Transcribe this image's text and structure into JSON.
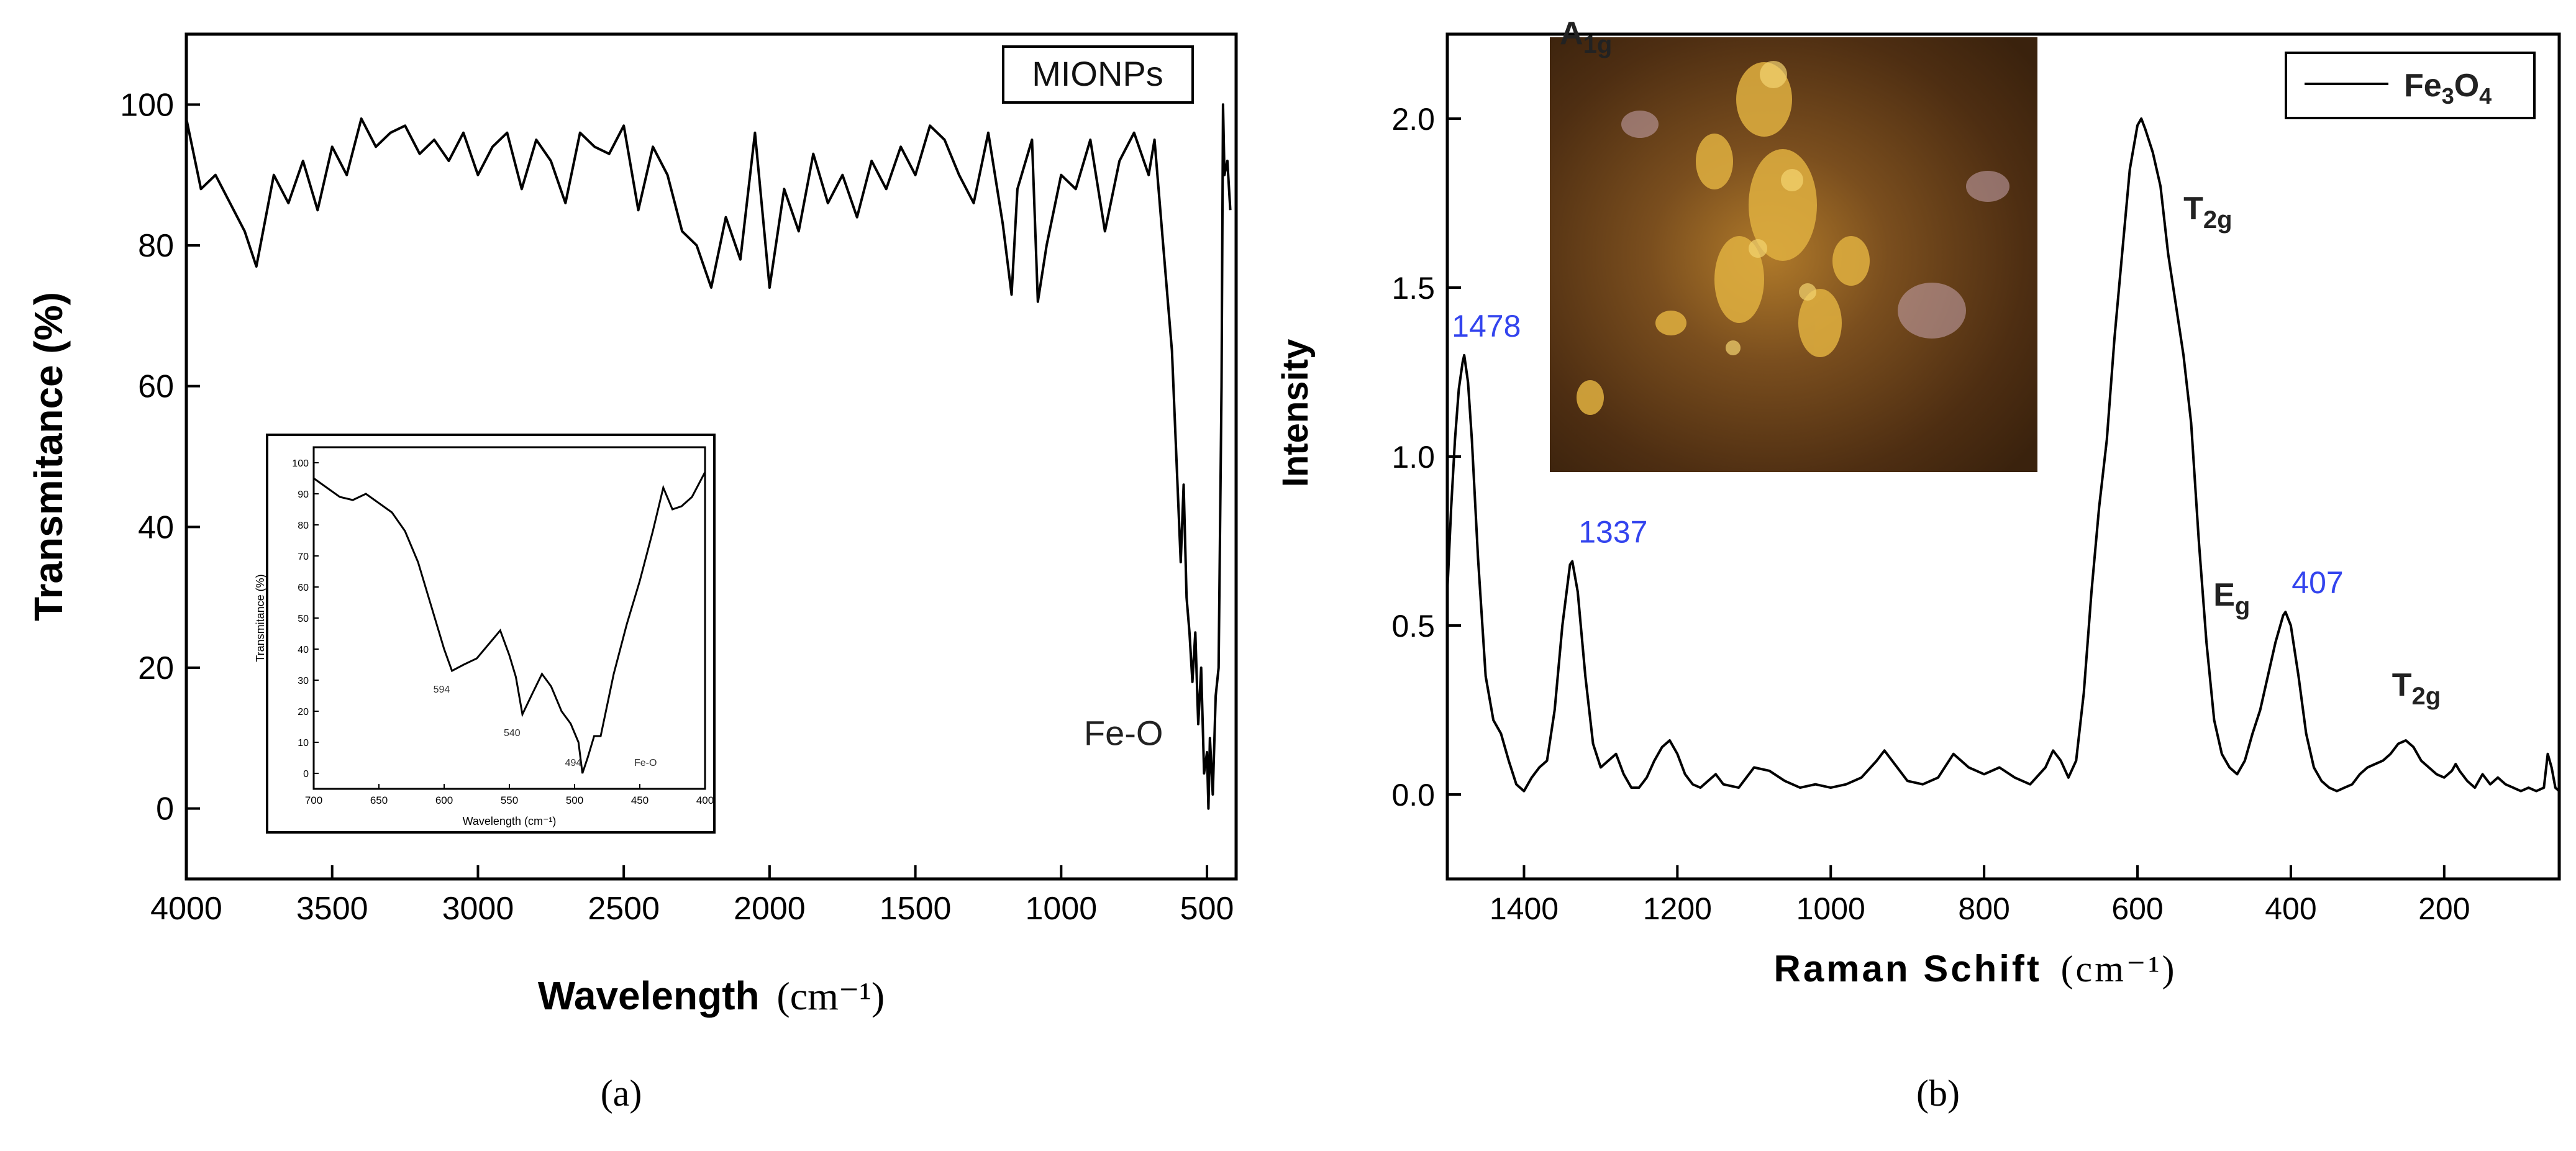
{
  "chart_data": [
    {
      "type": "line",
      "panel_label": "(a)",
      "xlabel": "Wavelength",
      "xlabel_unit": "(cm⁻¹)",
      "ylabel": "Transmitance (%)",
      "xlim": [
        4000,
        400
      ],
      "ylim": [
        -10,
        110
      ],
      "x_ticks": [
        4000,
        3500,
        3000,
        2500,
        2000,
        1500,
        1000,
        500
      ],
      "y_ticks": [
        0,
        20,
        40,
        60,
        80,
        100
      ],
      "legend": "MIONPs",
      "legend_position": "top-right",
      "annotations": [
        {
          "text": "Fe-O",
          "x": 560,
          "y": 9
        }
      ],
      "series": [
        {
          "x": [
            4000,
            3950,
            3900,
            3850,
            3800,
            3760,
            3700,
            3650,
            3600,
            3550,
            3500,
            3450,
            3400,
            3350,
            3300,
            3250,
            3200,
            3150,
            3100,
            3050,
            3000,
            2950,
            2900,
            2850,
            2800,
            2750,
            2700,
            2650,
            2600,
            2550,
            2500,
            2450,
            2400,
            2350,
            2300,
            2250,
            2200,
            2150,
            2100,
            2050,
            2000,
            1950,
            1900,
            1850,
            1800,
            1750,
            1700,
            1650,
            1600,
            1550,
            1500,
            1450,
            1400,
            1350,
            1300,
            1250,
            1200,
            1170,
            1150,
            1100,
            1080,
            1050,
            1000,
            950,
            900,
            850,
            800,
            750,
            700,
            680,
            650,
            640,
            620,
            600,
            590,
            580,
            570,
            560,
            550,
            540,
            530,
            520,
            510,
            500,
            495,
            490,
            480,
            470,
            460,
            450,
            445,
            440,
            430,
            420
          ],
          "values": [
            98,
            88,
            90,
            86,
            82,
            77,
            90,
            86,
            92,
            85,
            94,
            90,
            98,
            94,
            96,
            97,
            93,
            95,
            92,
            96,
            90,
            94,
            96,
            88,
            95,
            92,
            86,
            96,
            94,
            93,
            97,
            85,
            94,
            90,
            82,
            80,
            74,
            84,
            78,
            96,
            74,
            88,
            82,
            93,
            86,
            90,
            84,
            92,
            88,
            94,
            90,
            97,
            95,
            90,
            86,
            96,
            83,
            73,
            88,
            95,
            72,
            80,
            90,
            88,
            95,
            82,
            92,
            96,
            90,
            95,
            80,
            75,
            65,
            45,
            35,
            46,
            30,
            25,
            18,
            25,
            12,
            20,
            5,
            8,
            0,
            10,
            2,
            16,
            20,
            60,
            100,
            90,
            92,
            85
          ]
        }
      ]
    },
    {
      "type": "line",
      "inset_of": "(a)",
      "xlabel": "Wavelength (cm⁻¹)",
      "ylabel": "Transmitance (%)",
      "xlim": [
        700,
        400
      ],
      "ylim": [
        -5,
        105
      ],
      "x_ticks": [
        700,
        650,
        600,
        550,
        500,
        450,
        400
      ],
      "y_ticks": [
        0,
        10,
        20,
        30,
        40,
        50,
        60,
        70,
        80,
        90,
        100
      ],
      "annotations": [
        {
          "text": "594",
          "x": 594,
          "y": 33
        },
        {
          "text": "540",
          "x": 540,
          "y": 19
        },
        {
          "text": "494",
          "x": 494,
          "y": 0
        },
        {
          "text": "Fe-O",
          "x": 460,
          "y": 0
        }
      ],
      "series": [
        {
          "x": [
            700,
            690,
            680,
            670,
            660,
            650,
            640,
            630,
            620,
            610,
            600,
            594,
            585,
            575,
            565,
            557,
            550,
            545,
            540,
            532,
            525,
            518,
            510,
            503,
            497,
            494,
            490,
            485,
            480,
            470,
            460,
            450,
            440,
            432,
            425,
            418,
            410,
            400
          ],
          "values": [
            95,
            92,
            89,
            88,
            90,
            87,
            84,
            78,
            68,
            54,
            40,
            33,
            35,
            37,
            42,
            46,
            38,
            31,
            19,
            26,
            32,
            28,
            20,
            16,
            10,
            0,
            5,
            12,
            12,
            32,
            48,
            62,
            78,
            92,
            85,
            86,
            89,
            97
          ]
        }
      ]
    },
    {
      "type": "line",
      "panel_label": "(b)",
      "xlabel": "Raman Schift",
      "xlabel_unit": "(cm⁻¹)",
      "ylabel": "Intensity",
      "xlim": [
        1500,
        50
      ],
      "ylim": [
        -0.25,
        2.25
      ],
      "x_ticks": [
        1400,
        1200,
        1000,
        800,
        600,
        400,
        200
      ],
      "y_ticks": [
        0.0,
        0.5,
        1.0,
        1.5,
        2.0
      ],
      "legend": "Fe3O4",
      "legend_position": "top-right",
      "inset_image": "micrograph",
      "peak_labels": [
        {
          "text": "1478",
          "x": 1478,
          "y": 1.3
        },
        {
          "text": "1337",
          "x": 1337,
          "y": 0.69
        },
        {
          "text": "407",
          "x": 407,
          "y": 0.54
        }
      ],
      "mode_labels": [
        {
          "base": "A",
          "sub": "1g",
          "x": 600,
          "y": 2.0
        },
        {
          "base": "T",
          "sub": "2g",
          "x": 540,
          "y": 1.5
        },
        {
          "base": "E",
          "sub": "g",
          "x": 420,
          "y": 0.55
        },
        {
          "base": "T",
          "sub": "2g",
          "x": 260,
          "y": 0.2
        }
      ],
      "series": [
        {
          "name": "Fe3O4",
          "x": [
            1500,
            1495,
            1490,
            1485,
            1480,
            1478,
            1473,
            1468,
            1460,
            1450,
            1440,
            1430,
            1420,
            1410,
            1400,
            1390,
            1380,
            1370,
            1360,
            1350,
            1340,
            1337,
            1330,
            1320,
            1310,
            1300,
            1290,
            1280,
            1270,
            1260,
            1250,
            1240,
            1230,
            1220,
            1210,
            1200,
            1190,
            1180,
            1170,
            1160,
            1150,
            1140,
            1120,
            1100,
            1080,
            1060,
            1040,
            1020,
            1000,
            980,
            960,
            940,
            930,
            920,
            900,
            880,
            860,
            840,
            830,
            820,
            800,
            780,
            760,
            740,
            720,
            710,
            700,
            690,
            680,
            670,
            660,
            650,
            640,
            630,
            620,
            610,
            600,
            595,
            590,
            580,
            570,
            560,
            550,
            540,
            530,
            520,
            510,
            500,
            490,
            480,
            470,
            460,
            450,
            440,
            430,
            420,
            410,
            407,
            400,
            390,
            380,
            370,
            360,
            350,
            340,
            330,
            320,
            310,
            300,
            290,
            280,
            270,
            260,
            250,
            240,
            230,
            220,
            210,
            200,
            190,
            185,
            180,
            170,
            160,
            150,
            140,
            130,
            120,
            110,
            100,
            90,
            80,
            70,
            65,
            60,
            55,
            50
          ],
          "values": [
            0.6,
            0.85,
            1.05,
            1.2,
            1.28,
            1.3,
            1.22,
            1.05,
            0.7,
            0.35,
            0.22,
            0.18,
            0.1,
            0.03,
            0.01,
            0.05,
            0.08,
            0.1,
            0.25,
            0.5,
            0.68,
            0.69,
            0.6,
            0.35,
            0.15,
            0.08,
            0.1,
            0.12,
            0.06,
            0.02,
            0.02,
            0.05,
            0.1,
            0.14,
            0.16,
            0.12,
            0.06,
            0.03,
            0.02,
            0.04,
            0.06,
            0.03,
            0.02,
            0.08,
            0.07,
            0.04,
            0.02,
            0.03,
            0.02,
            0.03,
            0.05,
            0.1,
            0.13,
            0.1,
            0.04,
            0.03,
            0.05,
            0.12,
            0.1,
            0.08,
            0.06,
            0.08,
            0.05,
            0.03,
            0.08,
            0.13,
            0.1,
            0.05,
            0.1,
            0.3,
            0.6,
            0.85,
            1.05,
            1.35,
            1.6,
            1.85,
            1.98,
            2.0,
            1.97,
            1.9,
            1.8,
            1.6,
            1.45,
            1.3,
            1.1,
            0.75,
            0.45,
            0.22,
            0.12,
            0.08,
            0.06,
            0.1,
            0.18,
            0.25,
            0.35,
            0.45,
            0.53,
            0.54,
            0.5,
            0.35,
            0.18,
            0.08,
            0.04,
            0.02,
            0.01,
            0.02,
            0.03,
            0.06,
            0.08,
            0.09,
            0.1,
            0.12,
            0.15,
            0.16,
            0.14,
            0.1,
            0.08,
            0.06,
            0.05,
            0.07,
            0.09,
            0.07,
            0.04,
            0.02,
            0.06,
            0.03,
            0.05,
            0.03,
            0.02,
            0.01,
            0.02,
            0.01,
            0.02,
            0.12,
            0.08,
            0.02,
            0.01
          ]
        }
      ]
    }
  ]
}
